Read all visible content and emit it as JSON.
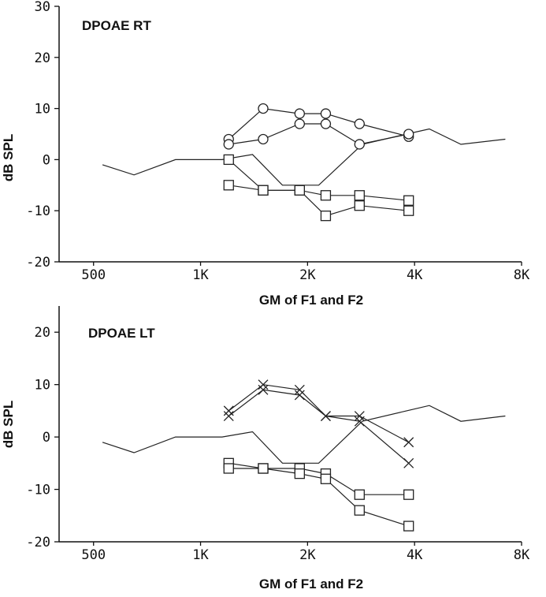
{
  "chart_data": [
    {
      "type": "line",
      "title": "DPOAE RT",
      "xlabel": "GM of F1 and F2",
      "ylabel": "dB SPL",
      "x_scale": "log",
      "xlim": [
        400,
        8000
      ],
      "ylim": [
        -20,
        30
      ],
      "x_ticks": [
        500,
        1000,
        2000,
        4000,
        8000
      ],
      "x_tick_labels": [
        "500",
        "1K",
        "2K",
        "4K",
        "8K"
      ],
      "y_ticks": [
        -20,
        -10,
        0,
        10,
        20,
        30
      ],
      "y_tick_labels": [
        "-20",
        "-10",
        "0",
        "10",
        "20",
        "30"
      ],
      "grid": false,
      "legend": "none",
      "series": [
        {
          "marker": "none",
          "x": [
            530,
            650,
            850,
            1150,
            1400,
            1700,
            2150,
            2850,
            3800,
            4400,
            5400,
            7200
          ],
          "y": [
            -1,
            -3,
            0,
            0,
            1,
            -5,
            -5,
            3,
            5,
            6,
            3,
            4
          ]
        },
        {
          "marker": "circle",
          "x": [
            1200,
            1500,
            1900,
            2250,
            2800,
            3850
          ],
          "y": [
            4,
            10,
            9,
            9,
            7,
            4.5
          ]
        },
        {
          "marker": "circle",
          "x": [
            1200,
            1500,
            1900,
            2250,
            2800,
            3850
          ],
          "y": [
            3,
            4,
            7,
            7,
            3,
            5
          ]
        },
        {
          "marker": "square",
          "x": [
            1200,
            1500,
            1900,
            2250,
            2800,
            3850
          ],
          "y": [
            0,
            -6,
            -6,
            -7,
            -7,
            -8
          ]
        },
        {
          "marker": "square",
          "x": [
            1200,
            1500,
            1900,
            2250,
            2800,
            3850
          ],
          "y": [
            -5,
            -6,
            -6,
            -11,
            -9,
            -10
          ]
        }
      ]
    },
    {
      "type": "line",
      "title": "DPOAE LT",
      "xlabel": "GM of F1 and F2",
      "ylabel": "dB SPL",
      "x_scale": "log",
      "xlim": [
        400,
        8000
      ],
      "ylim": [
        -20,
        25
      ],
      "x_ticks": [
        500,
        1000,
        2000,
        4000,
        8000
      ],
      "x_tick_labels": [
        "500",
        "1K",
        "2K",
        "4K",
        "8K"
      ],
      "y_ticks": [
        -20,
        -10,
        0,
        10,
        20
      ],
      "y_tick_labels": [
        "-20",
        "-10",
        "0",
        "10",
        "20"
      ],
      "grid": false,
      "legend": "none",
      "series": [
        {
          "marker": "none",
          "x": [
            530,
            650,
            850,
            1150,
            1400,
            1700,
            2150,
            2850,
            3800,
            4400,
            5400,
            7200
          ],
          "y": [
            -1,
            -3,
            0,
            0,
            1,
            -5,
            -5,
            3,
            5,
            6,
            3,
            4
          ]
        },
        {
          "marker": "x",
          "x": [
            1200,
            1500,
            1900,
            2250,
            2800,
            3850
          ],
          "y": [
            5,
            10,
            9,
            4,
            4,
            -1
          ]
        },
        {
          "marker": "x",
          "x": [
            1200,
            1500,
            1900,
            2250,
            2800,
            3850
          ],
          "y": [
            4,
            9,
            8,
            4,
            3,
            -5
          ]
        },
        {
          "marker": "square",
          "x": [
            1200,
            1500,
            1900,
            2250,
            2800,
            3850
          ],
          "y": [
            -5,
            -6,
            -6,
            -7,
            -11,
            -11
          ]
        },
        {
          "marker": "square",
          "x": [
            1200,
            1500,
            1900,
            2250,
            2800,
            3850
          ],
          "y": [
            -6,
            -6,
            -7,
            -8,
            -14,
            -17
          ]
        }
      ]
    }
  ]
}
